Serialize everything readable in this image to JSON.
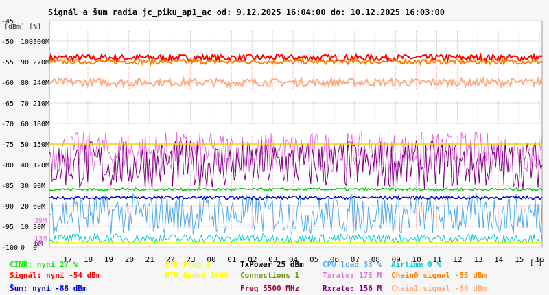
{
  "chart_data": {
    "type": "line",
    "title": "Signál a šum radia jc_piku_ap1_ac od: 9.12.2025 16:04:00 do: 10.12.2025 16:03:00",
    "y_units_label": "[dBm] [%]",
    "x_unit_label": "[h]",
    "x_ticks": [
      "17",
      "18",
      "19",
      "20",
      "21",
      "22",
      "23",
      "00",
      "01",
      "02",
      "03",
      "04",
      "05",
      "06",
      "07",
      "08",
      "09",
      "10",
      "11",
      "12",
      "13",
      "14",
      "15",
      "16"
    ],
    "y_left_ticks": [
      {
        "dbm": -45,
        "pct": "",
        "rate": ""
      },
      {
        "dbm": -50,
        "pct": "100",
        "rate": "300M"
      },
      {
        "dbm": -55,
        "pct": "90",
        "rate": "270M"
      },
      {
        "dbm": -60,
        "pct": "80",
        "rate": "240M"
      },
      {
        "dbm": -65,
        "pct": "70",
        "rate": "210M"
      },
      {
        "dbm": -70,
        "pct": "60",
        "rate": "180M"
      },
      {
        "dbm": -75,
        "pct": "50",
        "rate": "150M"
      },
      {
        "dbm": -80,
        "pct": "40",
        "rate": "120M"
      },
      {
        "dbm": -85,
        "pct": "30",
        "rate": "90M"
      },
      {
        "dbm": -90,
        "pct": "20",
        "rate": "60M"
      },
      {
        "dbm": -95,
        "pct": "10",
        "rate": "30M"
      },
      {
        "dbm": -100,
        "pct": "0",
        "rate": "0"
      }
    ],
    "ylim": [
      -100,
      -45
    ],
    "grid": true,
    "inline_labels": [
      {
        "text": "39M",
        "dbm": -93.5,
        "color": "#e070e0"
      },
      {
        "text": "13M",
        "dbm": -97.8,
        "color": "#e070e0"
      },
      {
        "text": "6M",
        "dbm": -99.0,
        "color": "#800080"
      }
    ],
    "series": [
      {
        "name": "Signál",
        "color": "#ff0000",
        "level": -54,
        "noise": 0.8,
        "style": "band"
      },
      {
        "name": "Chain0 signal",
        "color": "#ff8000",
        "level": -55,
        "noise": 0.6,
        "style": "band"
      },
      {
        "name": "Chain1 signal",
        "color": "#ffaa80",
        "level": -60,
        "noise": 1.0,
        "style": "band"
      },
      {
        "name": "Txrate",
        "color": "#e070e0",
        "level": -77,
        "noise": 5,
        "style": "spiky"
      },
      {
        "name": "Rxrate",
        "color": "#800080",
        "level": -80,
        "noise": 6,
        "style": "spiky"
      },
      {
        "name": "CPU load",
        "color": "#55aaee",
        "level": -92,
        "noise": 5,
        "style": "spiky"
      },
      {
        "name": "CINR",
        "color": "#00cc00",
        "level": -86,
        "noise": 0.3,
        "style": "flat"
      },
      {
        "name": "Šum",
        "color": "#0000cc",
        "level": -88,
        "noise": 0.4,
        "style": "flat"
      },
      {
        "name": "Airtime",
        "color": "#00cccc",
        "level": -98,
        "noise": 1.2,
        "style": "spiky"
      },
      {
        "name": "ETH Plug",
        "color": "#ffff00",
        "level": -99,
        "noise": 0,
        "style": "flat"
      },
      {
        "name": "TxPower",
        "color": "#ffcc00",
        "level": -75,
        "noise": 0,
        "style": "flat"
      }
    ],
    "legend": [
      {
        "text": "CINR: nyní 27 %",
        "color": "#00ee00"
      },
      {
        "text": "ETH Plug 1",
        "color": "#ffff00"
      },
      {
        "text": "TxPower 25 dBm",
        "color": "#000000"
      },
      {
        "text": "CPU load 33 %",
        "color": "#55aaee"
      },
      {
        "text": "Airtime 0 %",
        "color": "#00cccc"
      },
      {
        "text": "Signál: nyní -54 dBm",
        "color": "#ff0000"
      },
      {
        "text": "ETH Speed 1000",
        "color": "#ffff00"
      },
      {
        "text": "Connections 1",
        "color": "#669900"
      },
      {
        "text": "Txrate: 173 M",
        "color": "#e070e0"
      },
      {
        "text": "Chain0 signal -55 dBm",
        "color": "#ff8000"
      },
      {
        "text": "Šum: nyní -88 dBm",
        "color": "#0000cc"
      },
      {
        "text": "Freq 5500 MHz",
        "color": "#a00040"
      },
      {
        "text": "Rxrate: 156 M",
        "color": "#800080"
      },
      {
        "text": "Chain1 signal -60 dBm",
        "color": "#ffaa80"
      }
    ]
  }
}
